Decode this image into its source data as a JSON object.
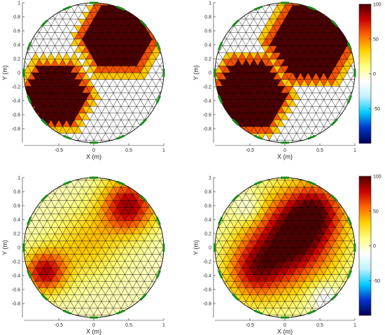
{
  "colormap": {
    "stops": [
      "#00004d",
      "#0033cc",
      "#00ccff",
      "#bff2ff",
      "#ffffff",
      "#ffff80",
      "#ffd000",
      "#ff6600",
      "#cc0000",
      "#4d0000"
    ]
  },
  "mesh": {
    "edge_color": "#000000",
    "electrode_color": "#1a8a1a",
    "electrodes": 16
  },
  "chart_data": [
    {
      "type": "heatmap",
      "panel": "top-left",
      "xlabel": "X (m)",
      "ylabel": "Y (m)",
      "xlim": [
        -1,
        1
      ],
      "ylim": [
        -1,
        1
      ],
      "xticks": [
        "-0.5",
        "0",
        "0.5",
        "1"
      ],
      "yticks": [
        "1",
        "0.8",
        "0.6",
        "0.4",
        "0.2",
        "0",
        "-0.2",
        "-0.4",
        "-0.6",
        "-0.8"
      ],
      "clim": [
        -100,
        100
      ],
      "background": "transparent",
      "inclusions": [
        {
          "shape": "hexagon",
          "center": [
            0.35,
            0.5
          ],
          "radius": 0.5,
          "value": 100
        },
        {
          "shape": "hexagon",
          "center": [
            -0.55,
            -0.32
          ],
          "radius": 0.45,
          "value": 100
        }
      ],
      "has_colorbar": false
    },
    {
      "type": "heatmap",
      "panel": "top-right",
      "xlabel": "X (m)",
      "ylabel": "Y (m)",
      "xlim": [
        -1,
        1
      ],
      "ylim": [
        -1,
        1
      ],
      "xticks": [
        "-0.5",
        "0",
        "0.5",
        "1"
      ],
      "yticks": [
        "1",
        "0.8",
        "0.6",
        "0.4",
        "0.2",
        "0",
        "-0.2",
        "-0.4",
        "-0.6",
        "-0.8"
      ],
      "clim": [
        -100,
        100
      ],
      "background": "transparent",
      "inclusions": [
        {
          "shape": "hexagon",
          "center": [
            0.38,
            0.45
          ],
          "radius": 0.58,
          "value": 100
        },
        {
          "shape": "hexagon",
          "center": [
            -0.5,
            -0.3
          ],
          "radius": 0.52,
          "value": 100
        }
      ],
      "has_colorbar": true,
      "colorbar_ticks": [
        "100",
        "50",
        "0",
        "-50"
      ]
    },
    {
      "type": "heatmap",
      "panel": "bottom-left",
      "xlabel": "X (m)",
      "ylabel": "Y (m)",
      "xlim": [
        -1,
        1
      ],
      "ylim": [
        -1,
        1
      ],
      "xticks": [
        "-0.5",
        "0",
        "0.5",
        "1"
      ],
      "yticks": [
        "1",
        "0.8",
        "0.6",
        "0.4",
        "0.2",
        "0",
        "-0.2",
        "-0.4",
        "-0.6",
        "-0.8"
      ],
      "clim": [
        -100,
        100
      ],
      "background": "smooth",
      "blobs": [
        {
          "center": [
            0.5,
            0.6
          ],
          "sigma": 0.28,
          "value": 85
        },
        {
          "center": [
            -0.7,
            -0.35
          ],
          "sigma": 0.22,
          "value": 80
        },
        {
          "center": [
            -0.1,
            0.05
          ],
          "sigma": 0.35,
          "value": 35
        }
      ],
      "has_colorbar": false
    },
    {
      "type": "heatmap",
      "panel": "bottom-right",
      "xlabel": "X (m)",
      "ylabel": "Y (m)",
      "xlim": [
        -1,
        1
      ],
      "ylim": [
        -1,
        1
      ],
      "xticks": [
        "-0.5",
        "0",
        "0.5",
        "1"
      ],
      "yticks": [
        "1",
        "0.8",
        "0.6",
        "0.4",
        "0.2",
        "0",
        "-0.2",
        "-0.4",
        "-0.6",
        "-0.8"
      ],
      "clim": [
        -100,
        100
      ],
      "background": "smooth",
      "blobs": [
        {
          "center": [
            0.1,
            0.1
          ],
          "sigma": 0.45,
          "value": 100
        },
        {
          "center": [
            0.45,
            0.55
          ],
          "sigma": 0.3,
          "value": 60
        },
        {
          "center": [
            -0.45,
            -0.35
          ],
          "sigma": 0.3,
          "value": 60
        },
        {
          "center": [
            -0.5,
            0.55
          ],
          "sigma": 0.15,
          "value": -25
        },
        {
          "center": [
            0.55,
            -0.7
          ],
          "sigma": 0.15,
          "value": -25
        }
      ],
      "has_colorbar": true,
      "colorbar_ticks": [
        "100",
        "50",
        "0",
        "-50"
      ]
    }
  ]
}
